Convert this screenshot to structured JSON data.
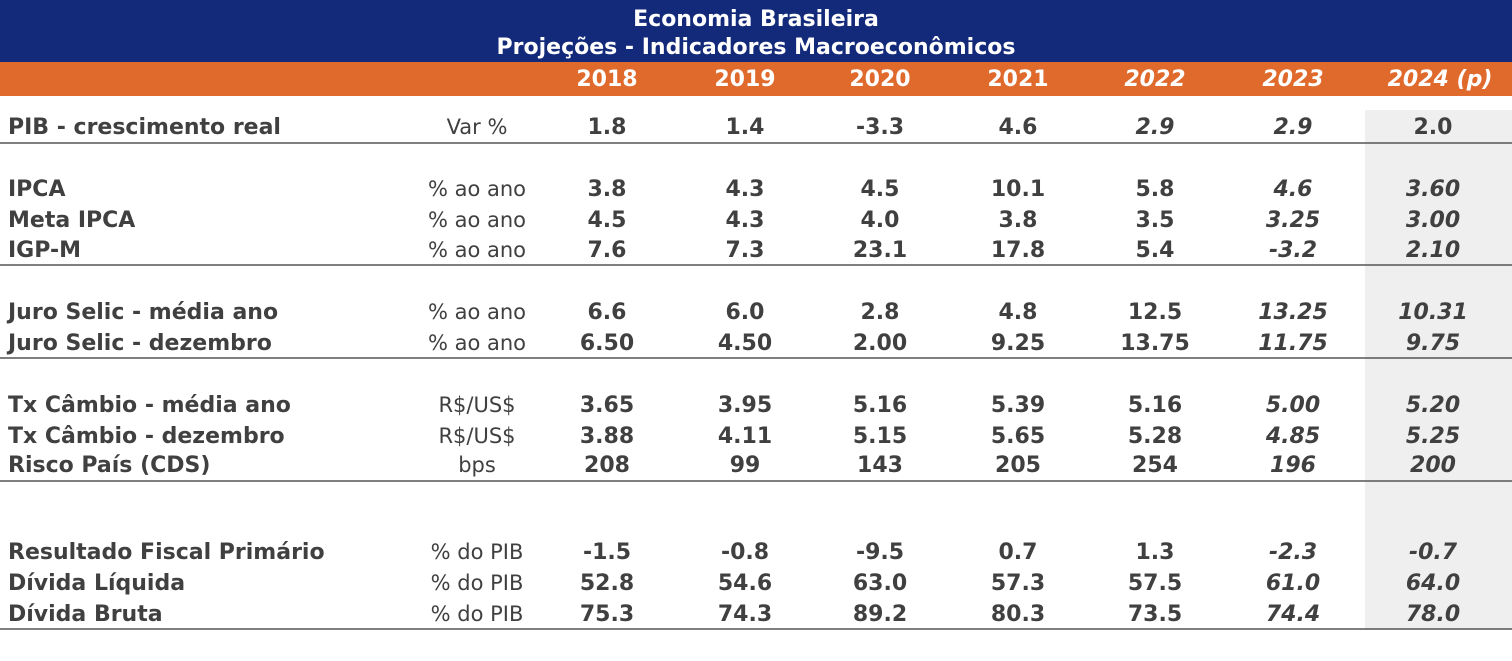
{
  "header": {
    "title": "Economia Brasileira",
    "subtitle": "Projeções - Indicadores Macroeconômicos"
  },
  "table": {
    "columns": [
      "2018",
      "2019",
      "2020",
      "2021",
      "2022",
      "2023",
      "2024 (p)"
    ],
    "groups": [
      {
        "rows": [
          {
            "label": "PIB - crescimento real",
            "unit": "Var %",
            "values": [
              "1.8",
              "1.4",
              "-3.3",
              "4.6",
              "2.9",
              "2.9",
              "2.0"
            ]
          }
        ]
      },
      {
        "rows": [
          {
            "label": "IPCA",
            "unit": "% ao ano",
            "values": [
              "3.8",
              "4.3",
              "4.5",
              "10.1",
              "5.8",
              "4.6",
              "3.60"
            ]
          },
          {
            "label": "Meta IPCA",
            "unit": "% ao ano",
            "values": [
              "4.5",
              "4.3",
              "4.0",
              "3.8",
              "3.5",
              "3.25",
              "3.00"
            ]
          },
          {
            "label": "IGP-M",
            "unit": "% ao ano",
            "values": [
              "7.6",
              "7.3",
              "23.1",
              "17.8",
              "5.4",
              "-3.2",
              "2.10"
            ]
          }
        ]
      },
      {
        "rows": [
          {
            "label": "Juro Selic - média ano",
            "unit": "% ao ano",
            "values": [
              "6.6",
              "6.0",
              "2.8",
              "4.8",
              "12.5",
              "13.25",
              "10.31"
            ]
          },
          {
            "label": "Juro Selic - dezembro",
            "unit": "% ao ano",
            "values": [
              "6.50",
              "4.50",
              "2.00",
              "9.25",
              "13.75",
              "11.75",
              "9.75"
            ]
          }
        ]
      },
      {
        "rows": [
          {
            "label": "Tx Câmbio - média ano",
            "unit": "R$/US$",
            "values": [
              "3.65",
              "3.95",
              "5.16",
              "5.39",
              "5.16",
              "5.00",
              "5.20"
            ]
          },
          {
            "label": "Tx Câmbio - dezembro",
            "unit": "R$/US$",
            "values": [
              "3.88",
              "4.11",
              "5.15",
              "5.65",
              "5.28",
              "4.85",
              "5.25"
            ]
          },
          {
            "label": "Risco País (CDS)",
            "unit": "bps",
            "values": [
              "208",
              "99",
              "143",
              "205",
              "254",
              "196",
              "200"
            ]
          }
        ]
      },
      {
        "rows": [
          {
            "label": "Resultado Fiscal Primário",
            "unit": "% do PIB",
            "values": [
              "-1.5",
              "-0.8",
              "-9.5",
              "0.7",
              "1.3",
              "-2.3",
              "-0.7"
            ]
          },
          {
            "label": "Dívida Líquida",
            "unit": "% do PIB",
            "values": [
              "52.8",
              "54.6",
              "63.0",
              "57.3",
              "57.5",
              "61.0",
              "64.0"
            ]
          },
          {
            "label": "Dívida Bruta",
            "unit": "% do PIB",
            "values": [
              "75.3",
              "74.3",
              "89.2",
              "80.3",
              "73.5",
              "74.4",
              "78.0"
            ]
          }
        ]
      }
    ]
  }
}
